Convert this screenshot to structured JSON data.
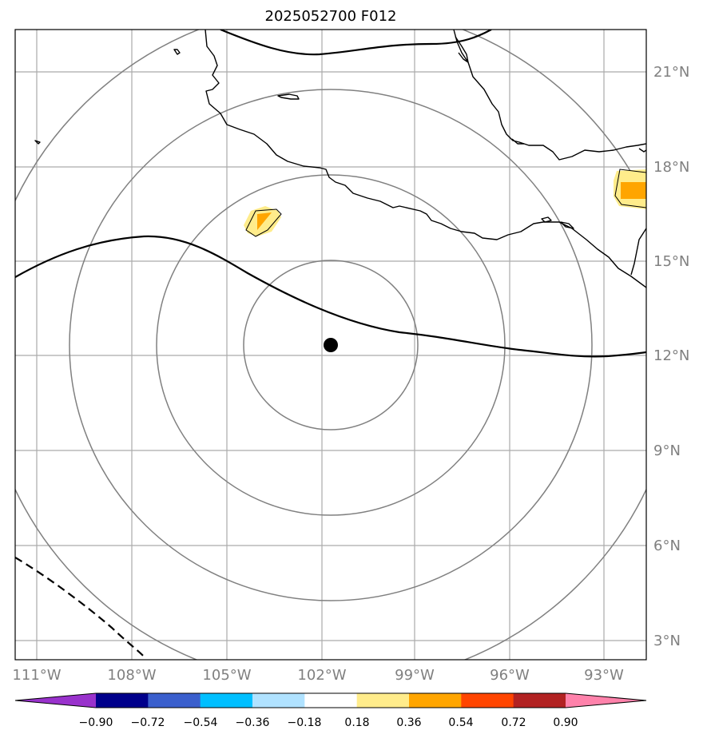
{
  "title": "2025052700 F012",
  "map": {
    "lon_labels": [
      "111°W",
      "108°W",
      "105°W",
      "102°W",
      "99°W",
      "96°W",
      "93°W"
    ],
    "lat_labels": [
      "21°N",
      "18°N",
      "15°N",
      "12°N",
      "9°N",
      "6°N",
      "3°N"
    ],
    "center_marker": {
      "lon": -101.7,
      "lat": 12.3
    },
    "range_rings": 4
  },
  "colorbar": {
    "tick_labels": [
      "−0.90",
      "−0.72",
      "−0.54",
      "−0.36",
      "−0.18",
      "0.18",
      "0.36",
      "0.54",
      "0.72",
      "0.90"
    ],
    "colors": [
      "#9932cc",
      "#00008b",
      "#3a5fcd",
      "#00bfff",
      "#b0e2ff",
      "#ffffff",
      "#ffec8b",
      "#ffa500",
      "#ff4500",
      "#b22222",
      "#ff82ab"
    ]
  }
}
